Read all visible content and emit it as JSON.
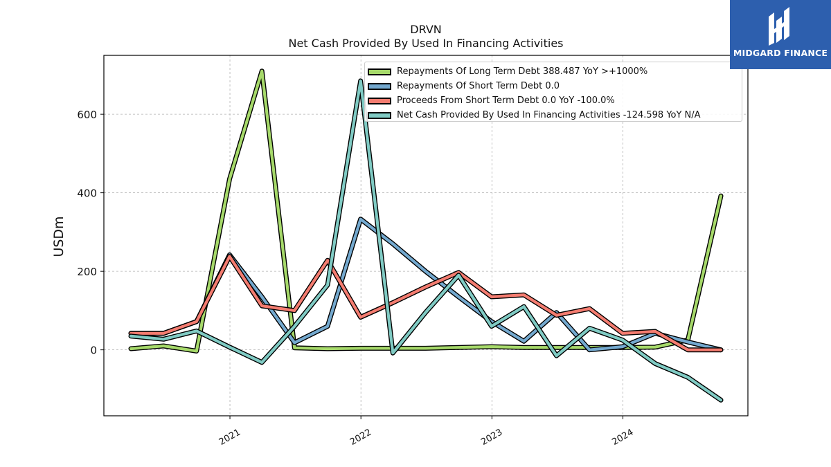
{
  "header": {
    "title_line1": "DRVN",
    "title_line2": "Net Cash Provided By Used In Financing Activities"
  },
  "logo": {
    "text": "MIDGARD FINANCE",
    "color": "#2d5fae"
  },
  "chart_data": {
    "type": "line",
    "title": "DRVN\nNet Cash Provided By Used In Financing Activities",
    "ylabel": "USDm",
    "xlabel": "",
    "x": [
      "2020-03-31",
      "2020-06-30",
      "2020-09-30",
      "2020-12-31",
      "2021-03-31",
      "2021-06-30",
      "2021-09-30",
      "2021-12-31",
      "2022-03-31",
      "2022-06-30",
      "2022-09-30",
      "2022-12-31",
      "2023-03-31",
      "2023-06-30",
      "2023-09-30",
      "2023-12-31",
      "2024-03-31",
      "2024-06-30",
      "2024-09-30"
    ],
    "xticks": [
      "2021",
      "2022",
      "2023",
      "2024"
    ],
    "yticks": [
      0,
      200,
      400,
      600
    ],
    "ylim": [
      -168,
      750
    ],
    "grid": true,
    "legend_position": "top-right",
    "series": [
      {
        "name": "Repayments Of Long Term Debt",
        "legend": "Repayments Of Long Term Debt  388.487 YoY >+1000%",
        "color": "#a6d96a",
        "values": [
          3,
          10,
          -3,
          435,
          710,
          5,
          3,
          4,
          4,
          4,
          6,
          8,
          6,
          6,
          6,
          6,
          7,
          25,
          392
        ]
      },
      {
        "name": "Repayments Of Short Term Debt",
        "legend": "Repayments Of Short Term Debt  0.0",
        "color": "#74a9cf",
        "values": [
          42,
          42,
          72,
          242,
          135,
          18,
          60,
          333,
          270,
          200,
          135,
          72,
          22,
          95,
          0,
          8,
          42,
          20,
          0
        ]
      },
      {
        "name": "Proceeds From Short Term Debt",
        "legend": "Proceeds From Short Term Debt  0.0 YoY -100.0%",
        "color": "#f47c70",
        "values": [
          42,
          42,
          72,
          238,
          112,
          100,
          228,
          83,
          120,
          160,
          197,
          135,
          140,
          88,
          105,
          42,
          47,
          0,
          0
        ]
      },
      {
        "name": "Net Cash Provided By Used In Financing Activities",
        "legend": "Net Cash Provided By Used In Financing Activities  -124.598 YoY N/A",
        "color": "#80cbc4",
        "values": [
          35,
          27,
          48,
          7,
          -32,
          60,
          165,
          685,
          -8,
          95,
          190,
          60,
          110,
          -15,
          55,
          25,
          -35,
          -70,
          -128
        ]
      }
    ]
  }
}
